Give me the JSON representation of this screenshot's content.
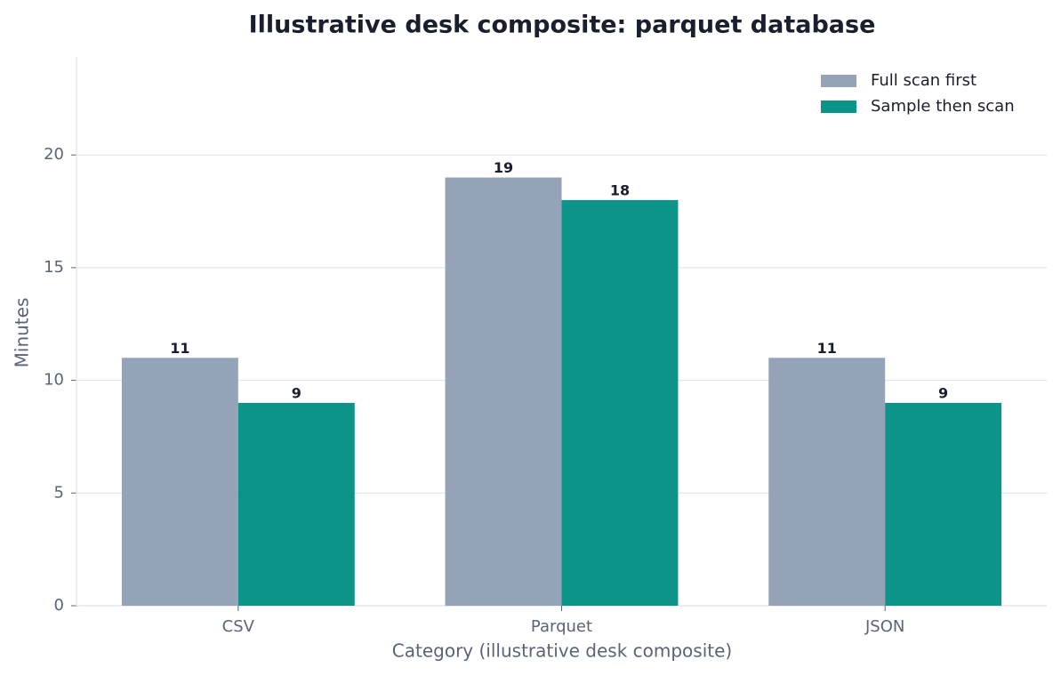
{
  "chart_data": {
    "type": "bar",
    "title": "Illustrative desk composite: parquet database",
    "xlabel": "Category (illustrative desk composite)",
    "ylabel": "Minutes",
    "categories": [
      "CSV",
      "Parquet",
      "JSON"
    ],
    "series": [
      {
        "name": "Full scan first",
        "color": "#94a3b8",
        "values": [
          11,
          19,
          11
        ]
      },
      {
        "name": "Sample then scan",
        "color": "#0d9488",
        "values": [
          9,
          18,
          9
        ]
      }
    ],
    "ylim": [
      0,
      24.35
    ],
    "yticks": [
      0,
      5,
      10,
      15,
      20
    ],
    "grid": true,
    "legend": "upper right"
  }
}
